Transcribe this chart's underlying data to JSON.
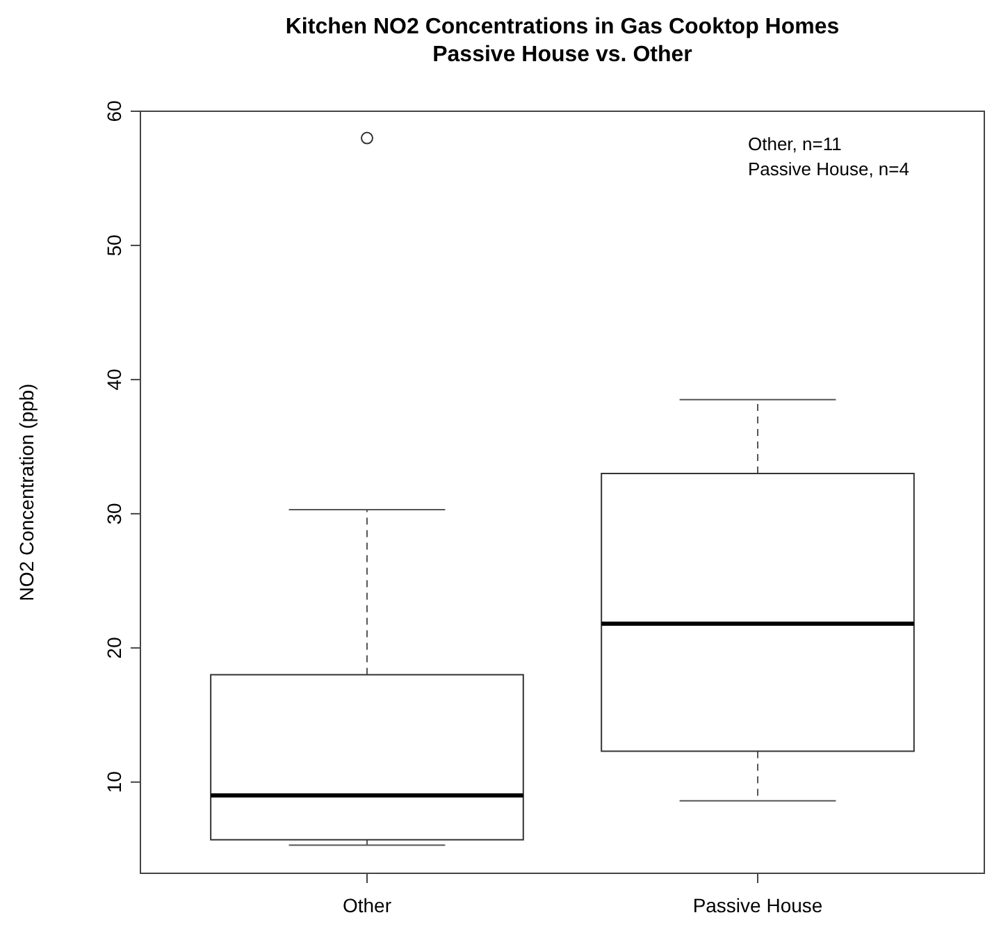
{
  "chart_data": {
    "type": "box",
    "title": "Kitchen NO2 Concentrations in Gas Cooktop Homes\nPassive House vs. Other",
    "ylabel": "NO2 Concentration (ppb)",
    "categories": [
      "Other",
      "Passive House"
    ],
    "boxes": [
      {
        "low": 5.3,
        "q1": 5.7,
        "median": 9.0,
        "q3": 18.0,
        "high": 30.3,
        "outliers": [
          58
        ]
      },
      {
        "low": 8.6,
        "q1": 12.3,
        "median": 21.8,
        "q3": 33.0,
        "high": 38.5
      }
    ],
    "ylim": [
      3.2,
      60
    ],
    "yticks": [
      10,
      20,
      30,
      40,
      50,
      60
    ],
    "grid": false,
    "annotations": [
      "Other, n=11\nPassive House, n=4"
    ]
  }
}
